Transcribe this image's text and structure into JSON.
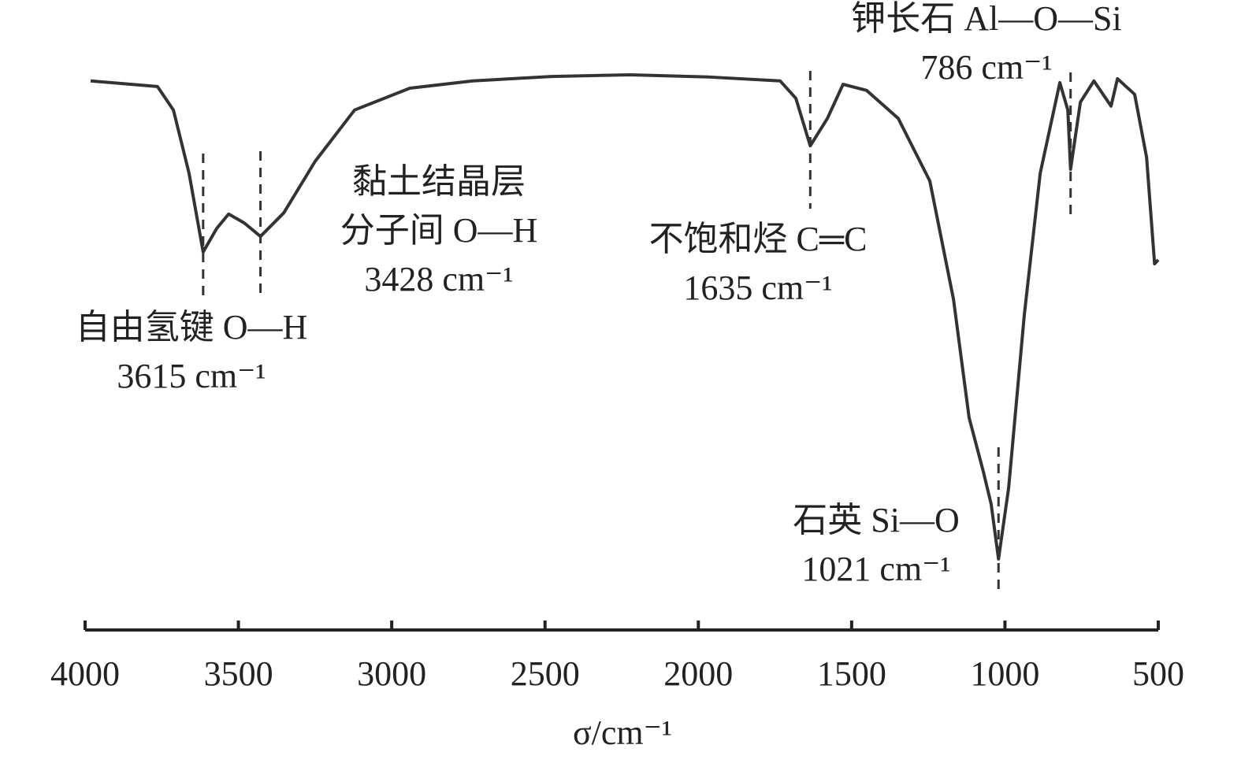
{
  "chart_data": {
    "type": "line",
    "x_label": "σ/cm⁻¹",
    "xlim": [
      4000,
      500
    ],
    "xticks": [
      4000,
      3500,
      3000,
      2500,
      2000,
      1500,
      1000,
      500
    ],
    "ylim": [
      0,
      100
    ],
    "series": [
      {
        "color": "#333333",
        "x": [
          3982,
          3764,
          3712,
          3661,
          3615,
          3571,
          3532,
          3481,
          3428,
          3352,
          3250,
          3121,
          2941,
          2736,
          2479,
          2222,
          1965,
          1733,
          1682,
          1635,
          1579,
          1528,
          1451,
          1348,
          1245,
          1168,
          1117,
          1070,
          1045,
          1021,
          988,
          937,
          885,
          821,
          795,
          786,
          754,
          710,
          680,
          654,
          633,
          577,
          538,
          512,
          500
        ],
        "values": [
          98.2,
          97.2,
          93,
          81.7,
          67.6,
          71.8,
          74.4,
          72.8,
          70.4,
          74.6,
          83.8,
          93,
          96.9,
          98.2,
          99,
          99.3,
          98.9,
          98.2,
          95.1,
          86.6,
          91.5,
          97.6,
          96.5,
          91.5,
          80.3,
          59.2,
          38,
          28.2,
          22.5,
          12.7,
          25.4,
          56.3,
          81.7,
          97.9,
          93,
          82.4,
          94.4,
          98.2,
          95.8,
          93.7,
          98.6,
          95.8,
          84.5,
          65.5,
          66.2
        ]
      }
    ],
    "annotations": [
      {
        "lines": [
          "自由氢键 O—H",
          "3615 cm⁻¹"
        ],
        "x": 3615
      },
      {
        "lines": [
          "黏土结晶层",
          "分子间 O—H",
          "3428 cm⁻¹"
        ],
        "x": 3428
      },
      {
        "lines": [
          "不饱和烃 C═C",
          "1635 cm⁻¹"
        ],
        "x": 1635
      },
      {
        "lines": [
          "石英 Si—O",
          "1021 cm⁻¹"
        ],
        "x": 1021
      },
      {
        "lines": [
          "钾长石 Al—O—Si",
          "786 cm⁻¹"
        ],
        "x": 786
      }
    ]
  }
}
